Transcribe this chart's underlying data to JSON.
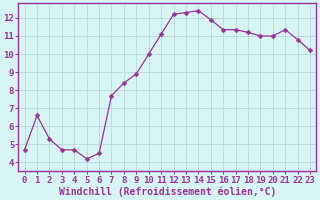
{
  "x": [
    0,
    1,
    2,
    3,
    4,
    5,
    6,
    7,
    8,
    9,
    10,
    11,
    12,
    13,
    14,
    15,
    16,
    17,
    18,
    19,
    20,
    21,
    22,
    23
  ],
  "y": [
    4.7,
    6.6,
    5.3,
    4.7,
    4.7,
    4.2,
    4.5,
    7.7,
    8.4,
    8.9,
    10.0,
    11.1,
    12.2,
    12.3,
    12.4,
    11.9,
    11.35,
    11.35,
    11.2,
    11.0,
    11.0,
    11.35,
    10.8,
    10.2
  ],
  "line_color": "#993399",
  "marker": "D",
  "marker_size": 2.5,
  "bg_color": "#d8f5f5",
  "grid_color": "#b8d8d8",
  "xlabel": "Windchill (Refroidissement éolien,°C)",
  "xlabel_fontsize": 7,
  "tick_fontsize": 6.5,
  "ylim": [
    3.5,
    12.8
  ],
  "xlim": [
    -0.5,
    23.5
  ],
  "yticks": [
    4,
    5,
    6,
    7,
    8,
    9,
    10,
    11,
    12
  ],
  "xticks": [
    0,
    1,
    2,
    3,
    4,
    5,
    6,
    7,
    8,
    9,
    10,
    11,
    12,
    13,
    14,
    15,
    16,
    17,
    18,
    19,
    20,
    21,
    22,
    23
  ],
  "xtick_labels": [
    "0",
    "1",
    "2",
    "3",
    "4",
    "5",
    "6",
    "7",
    "8",
    "9",
    "10",
    "11",
    "12",
    "13",
    "14",
    "15",
    "16",
    "17",
    "18",
    "19",
    "20",
    "21",
    "22",
    "23"
  ],
  "spine_color": "#993399",
  "text_color": "#993399"
}
